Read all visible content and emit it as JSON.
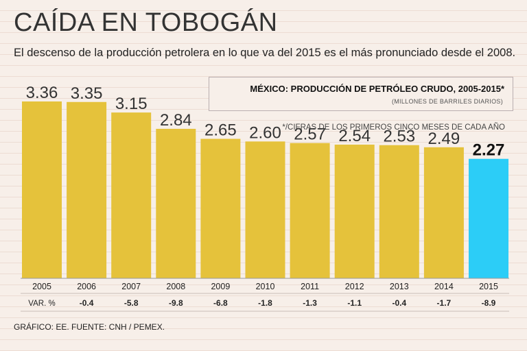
{
  "header": {
    "title": "CAÍDA EN TOBOGÁN",
    "subtitle": "El descenso de la producción petrolera en lo que va del 2015 es el más pronunciado desde el 2008."
  },
  "legend": {
    "title": "México: Producción de petróleo crudo, 2005-2015*",
    "units": "(MILLONES DE BARRILES DIARIOS)"
  },
  "footnote": "*/CIFRAS DE LOS PRIMEROS CINCO MESES DE CADA AÑO",
  "source": "GRÁFICO: EE. FUENTE: CNH / PEMEX.",
  "colors": {
    "bar": "#e5c23b",
    "highlight": "#2ccdf7",
    "background": "#f7efe9"
  },
  "chart_data": {
    "type": "bar",
    "title": "México: Producción de petróleo crudo, 2005-2015*",
    "ylabel": "Millones de barriles diarios",
    "xlabel": "",
    "ylim": [
      0,
      3.36
    ],
    "grid": false,
    "categories": [
      "2005",
      "2006",
      "2007",
      "2008",
      "2009",
      "2010",
      "2011",
      "2012",
      "2013",
      "2014",
      "2015"
    ],
    "values": [
      3.36,
      3.35,
      3.15,
      2.84,
      2.65,
      2.6,
      2.57,
      2.54,
      2.53,
      2.49,
      2.27
    ],
    "value_labels": [
      "3.36",
      "3.35",
      "3.15",
      "2.84",
      "2.65",
      "2.60",
      "2.57",
      "2.54",
      "2.53",
      "2.49",
      "2.27"
    ],
    "highlight_index": 10,
    "variation_header": "VAR. %",
    "variation": [
      "",
      "-0.4",
      "-5.8",
      "-9.8",
      "-6.8",
      "-1.8",
      "-1.3",
      "-1.1",
      "-0.4",
      "-1.7",
      "-8.9"
    ]
  }
}
